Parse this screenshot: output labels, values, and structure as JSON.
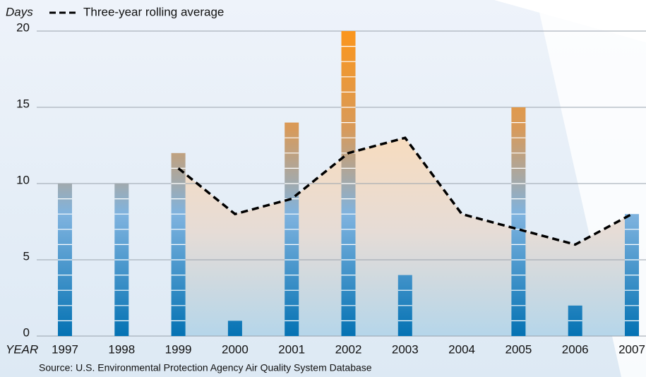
{
  "chart_data": {
    "type": "bar",
    "y_label": "Days",
    "x_label": "YEAR",
    "source": "Source: U.S. Environmental Protection Agency Air Quality System Database",
    "categories": [
      "1997",
      "1998",
      "1999",
      "2000",
      "2001",
      "2002",
      "2003",
      "2004",
      "2005",
      "2006",
      "2007"
    ],
    "series": [
      {
        "values": [
          10,
          10,
          12,
          1,
          14,
          20,
          4,
          0,
          15,
          2,
          8
        ],
        "color": "#0a78b8"
      },
      {
        "name": "Three-year rolling average",
        "type": "line",
        "values": [
          null,
          null,
          11,
          8,
          9,
          12,
          13,
          8,
          7,
          6,
          8
        ],
        "color": "#000000"
      }
    ],
    "ylim": [
      0,
      20
    ],
    "yticks": [
      0,
      5,
      10,
      15,
      20
    ],
    "grid": true
  }
}
